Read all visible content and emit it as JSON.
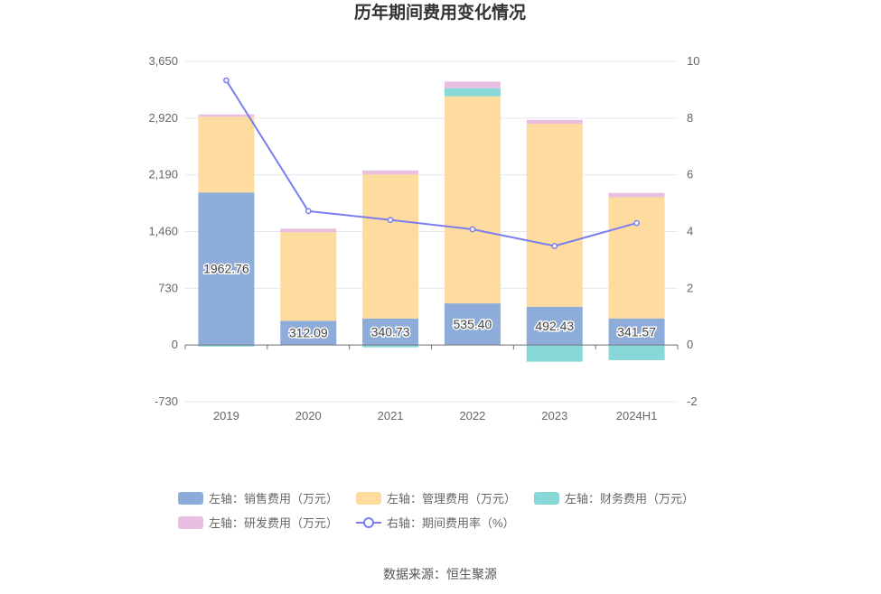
{
  "chart_data": {
    "type": "bar",
    "title": "历年期间费用变化情况",
    "categories": [
      "2019",
      "2020",
      "2021",
      "2022",
      "2023",
      "2024H1"
    ],
    "left_axis": {
      "ticks": [
        "3,650",
        "2,920",
        "2,190",
        "1,460",
        "730",
        "0",
        "-730"
      ],
      "ylim": [
        -730,
        3650
      ]
    },
    "right_axis": {
      "ticks": [
        "10",
        "8",
        "6",
        "4",
        "2",
        "0",
        "-2"
      ],
      "ylim": [
        -2,
        10
      ]
    },
    "series": [
      {
        "name": "左轴：销售费用（万元）",
        "color": "#8eacd9",
        "values": [
          1962.76,
          312.09,
          340.73,
          535.4,
          492.43,
          341.57
        ],
        "labels": [
          "1962.76",
          "312.09",
          "340.73",
          "535.40",
          "492.43",
          "341.57"
        ]
      },
      {
        "name": "左轴：管理费用（万元）",
        "color": "#fedb9e",
        "values": [
          975,
          1140,
          1855,
          2665,
          2355,
          1560
        ]
      },
      {
        "name": "左轴：财务费用（万元）",
        "color": "#88d8d8",
        "values": [
          -20,
          0,
          -30,
          105,
          -215,
          -195
        ]
      },
      {
        "name": "左轴：研发费用（万元）",
        "color": "#e8bfe0",
        "values": [
          30,
          45,
          50,
          85,
          50,
          55
        ]
      },
      {
        "name": "右轴：期间费用率（%）",
        "color": "#7b7ef0",
        "type": "line",
        "values": [
          9.33,
          4.72,
          4.41,
          4.08,
          3.49,
          4.3
        ]
      }
    ],
    "legend_position": "bottom",
    "grid": true
  },
  "footer": {
    "source": "数据来源：恒生聚源"
  }
}
